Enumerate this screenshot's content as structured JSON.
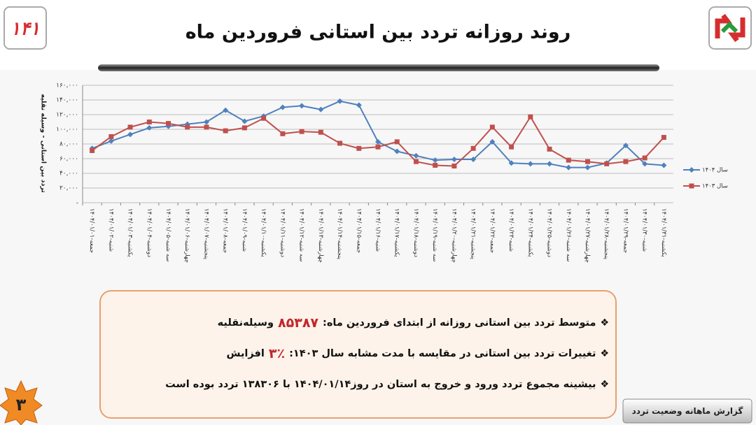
{
  "header": {
    "title": "روند روزانه تردد بین استانی فروردین ماه",
    "logo": "۱۴۱"
  },
  "chart_data": {
    "type": "line",
    "y_label": "تردد بین استانی - وسیله نقلیه",
    "categories": [
      "۱۴۰۴/۰۱/۰۱-جمعه",
      "۱۴۰۴/۰۱/۰۲-شنبه",
      "۱۴۰۴/۰۱/۰۳-یکشنبه",
      "۱۴۰۴/۰۱/۰۴-دوشنبه",
      "۱۴۰۴/۰۱/۰۵-سه شنبه",
      "۱۴۰۴/۰۱/۰۶-چهارشنبه",
      "۱۴۰۴/۰۱/۰۷-پنجشنبه",
      "۱۴۰۴/۰۱/۰۸-جمعه",
      "۱۴۰۴/۰۱/۰۹-شنبه",
      "۱۴۰۴/۰۱/۱۰-یکشنبه",
      "۱۴۰۴/۰۱/۱۱-دوشنبه",
      "۱۴۰۴/۰۱/۱۲-سه شنبه",
      "۱۴۰۴/۰۱/۱۳-چهارشنبه",
      "۱۴۰۴/۰۱/۱۴-پنجشنبه",
      "۱۴۰۴/۰۱/۱۵-جمعه",
      "۱۴۰۴/۰۱/۱۶-شنبه",
      "۱۴۰۴/۰۱/۱۷-یکشنبه",
      "۱۴۰۴/۰۱/۱۸-دوشنبه",
      "۱۴۰۴/۰۱/۱۹-سه شنبه",
      "۱۴۰۴/۰۱/۲۰-چهارشنبه",
      "۱۴۰۴/۰۱/۲۱-پنجشنبه",
      "۱۴۰۴/۰۱/۲۲-جمعه",
      "۱۴۰۴/۰۱/۲۳-شنبه",
      "۱۴۰۴/۰۱/۲۴-یکشنبه",
      "۱۴۰۴/۰۱/۲۵-دوشنبه",
      "۱۴۰۴/۰۱/۲۶-سه شنبه",
      "۱۴۰۴/۰۱/۲۷-چهارشنبه",
      "۱۴۰۴/۰۱/۲۸-پنجشنبه",
      "۱۴۰۴/۰۱/۲۹-جمعه",
      "۱۴۰۴/۰۱/۳۰-شنبه",
      "۱۴۰۴/۰۱/۳۱-یکشنبه"
    ],
    "series": [
      {
        "name": "سال ۱۴۰۴",
        "color": "#4f81bd",
        "marker": "diamond",
        "values": [
          74000,
          84000,
          93000,
          102000,
          104000,
          107000,
          110000,
          126000,
          111000,
          118000,
          130000,
          132000,
          127000,
          138306,
          133000,
          83000,
          70000,
          64000,
          58000,
          59000,
          59000,
          83000,
          54000,
          53000,
          53000,
          48000,
          48000,
          54000,
          78000,
          53000,
          51000
        ]
      },
      {
        "name": "سال ۱۴۰۳",
        "color": "#c0504d",
        "marker": "square",
        "values": [
          71000,
          90000,
          103000,
          110000,
          108000,
          103000,
          103000,
          98000,
          102000,
          115000,
          94000,
          97000,
          96000,
          81000,
          74000,
          76000,
          83000,
          56000,
          51000,
          50000,
          74000,
          103000,
          76000,
          117000,
          73000,
          58000,
          56000,
          53000,
          56000,
          61000,
          89000
        ]
      }
    ],
    "ylim": [
      0,
      160000
    ],
    "yticks": [
      {
        "value": 0,
        "label": "-"
      },
      {
        "value": 20000,
        "label": "۲۰,۰۰۰"
      },
      {
        "value": 40000,
        "label": "۴۰,۰۰۰"
      },
      {
        "value": 60000,
        "label": "۶۰,۰۰۰"
      },
      {
        "value": 80000,
        "label": "۸۰,۰۰۰"
      },
      {
        "value": 100000,
        "label": "۱۰۰,۰۰۰"
      },
      {
        "value": 120000,
        "label": "۱۲۰,۰۰۰"
      },
      {
        "value": 140000,
        "label": "۱۴۰,۰۰۰"
      },
      {
        "value": 160000,
        "label": "۱۶۰,۰۰۰"
      }
    ],
    "grid": true,
    "legend": "right"
  },
  "summary": {
    "items": [
      {
        "text": "متوسط تردد بین استانی روزانه از ابتدای فروردین ماه:",
        "highlight": "۸۵۳۸۷",
        "suffix": "وسیله‌نقلیه"
      },
      {
        "text": "تغییرات تردد بین استانی در مقایسه با مدت مشابه سال ۱۴۰۳:",
        "highlight": "۳٪",
        "suffix": "افزایش"
      },
      {
        "text": "بیشینه مجموع تردد ورود و خروج به استان در روز۱۴۰۴/۰۱/۱۴ با ۱۳۸۳۰۶ تردد بوده است"
      }
    ]
  },
  "footer": {
    "label": "گزارش ماهانه وضعیت تردد",
    "page": "۳"
  }
}
